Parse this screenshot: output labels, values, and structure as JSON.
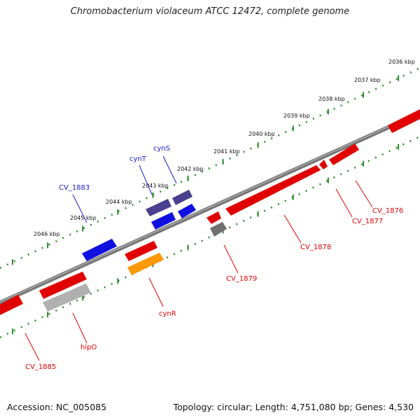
{
  "title": "Chromobacterium violaceum ATCC 12472, complete genome",
  "footer": {
    "accession": "Accession: NC_005085",
    "summary": "Topology: circular; Length: 4,751,080 bp; Genes: 4,530"
  },
  "colors": {
    "backbone": "#808080",
    "forward_ruler": "#2e8b2e",
    "label_red": "#e00000",
    "label_blue": "#1a1ad0"
  },
  "ruler_labels": [
    "2036 kbp",
    "2037 kbp",
    "2038 kbp",
    "2039 kbp",
    "2040 kbp",
    "2041 kbp",
    "2042 kbp",
    "2043 kbp",
    "2044 kbp",
    "2045 kbp",
    "2046 kbp"
  ],
  "genes": [
    {
      "name": "",
      "color": "#e00000",
      "strand": "+"
    },
    {
      "name": "CV_1876",
      "color": "#e00000",
      "strand": "-"
    },
    {
      "name": "CV_1877",
      "color": "#e00000",
      "strand": "-"
    },
    {
      "name": "CV_1878",
      "color": "#e00000",
      "strand": "-"
    },
    {
      "name": "CV_1879",
      "color": "#e00000",
      "strand": "-"
    },
    {
      "name": "",
      "color": "#707070",
      "strand": "-"
    },
    {
      "name": "cynR",
      "color": "#ff9900",
      "strand": "+"
    },
    {
      "name": "",
      "color": "#e00000",
      "strand": "+"
    },
    {
      "name": "cynS",
      "color": "#4b3f8f",
      "strand": "+"
    },
    {
      "name": "cynT",
      "color": "#4b3f8f",
      "strand": "+"
    },
    {
      "name": "",
      "color": "#1010e0",
      "strand": "+"
    },
    {
      "name": "",
      "color": "#1010e0",
      "strand": "+"
    },
    {
      "name": "CV_1883",
      "color": "#1010e0",
      "strand": "+"
    },
    {
      "name": "hipO",
      "color": "#b0b0b0",
      "strand": "+"
    },
    {
      "name": "",
      "color": "#e00000",
      "strand": "+"
    },
    {
      "name": "CV_1885",
      "color": "#e00000",
      "strand": "+"
    }
  ]
}
